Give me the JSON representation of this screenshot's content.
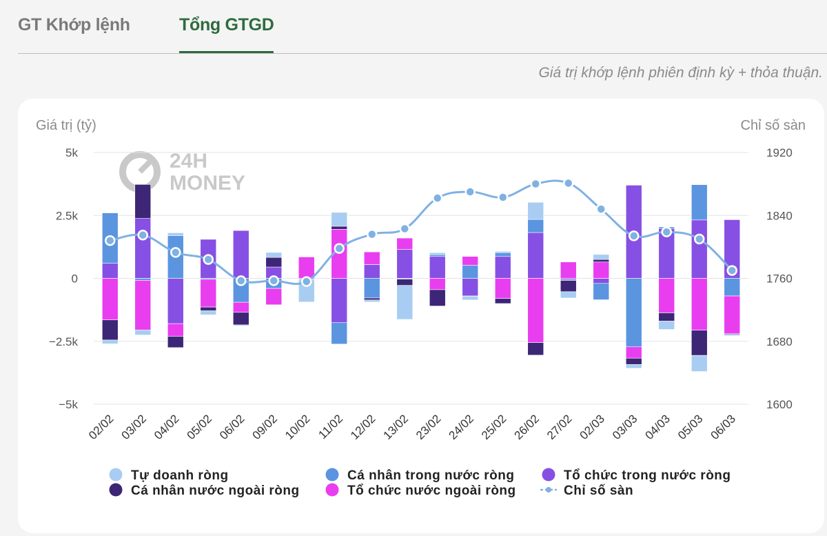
{
  "tabs": [
    {
      "label": "GT Khớp lệnh",
      "active": false
    },
    {
      "label": "Tổng GTGD",
      "active": true
    }
  ],
  "note": "Giá trị khớp lệnh phiên định kỳ + thỏa thuận.",
  "watermark": {
    "line1": "24H",
    "line2": "MONEY"
  },
  "colors": {
    "tu_doanh": "#a9cdf2",
    "ca_nhan_trong_nuoc": "#5b95e0",
    "to_chuc_trong_nuoc": "#8750e4",
    "ca_nhan_nuoc_ngoai": "#3d2675",
    "to_chuc_nuoc_ngoai": "#e93ef0",
    "chi_so_san": "#7fb1e3",
    "accent": "#2e6b3e"
  },
  "chart_data": {
    "type": "bar",
    "stacked": true,
    "title": "",
    "ylabel_left": "Giá trị (tỷ)",
    "ylabel_right": "Chỉ số sàn",
    "ylim": [
      -5000,
      5000
    ],
    "y2lim": [
      1600,
      1920
    ],
    "yticks_left": [
      "5k",
      "2.5k",
      "0",
      "−2.5k",
      "−5k"
    ],
    "yticks_right": [
      "1920",
      "1840",
      "1760",
      "1680",
      "1600"
    ],
    "categories": [
      "02/02",
      "03/02",
      "04/02",
      "05/02",
      "06/02",
      "09/02",
      "10/02",
      "11/02",
      "12/02",
      "13/02",
      "23/02",
      "24/02",
      "25/02",
      "26/02",
      "27/02",
      "02/03",
      "03/03",
      "04/03",
      "05/03",
      "06/03"
    ],
    "series": [
      {
        "key": "to_chuc_trong_nuoc",
        "name": "Tổ chức trong nước ròng",
        "values": [
          600,
          2380,
          -1800,
          1550,
          1900,
          450,
          0,
          -1760,
          550,
          1150,
          870,
          -700,
          870,
          1820,
          -50,
          -200,
          3700,
          1980,
          2320,
          2330
        ]
      },
      {
        "key": "ca_nhan_trong_nuoc",
        "name": "Cá nhân trong nước ròng",
        "values": [
          2000,
          -80,
          1700,
          -40,
          -950,
          -400,
          -40,
          -850,
          -780,
          -30,
          70,
          520,
          150,
          520,
          -30,
          -650,
          -2720,
          60,
          1400,
          -700
        ]
      },
      {
        "key": "to_chuc_nuoc_ngoai",
        "name": "Tổ chức nước ngoài ròng",
        "values": [
          -1650,
          -1970,
          -500,
          -1100,
          -400,
          -650,
          850,
          1950,
          500,
          450,
          -450,
          350,
          -800,
          -2550,
          650,
          650,
          -450,
          -1370,
          -2060,
          -1500
        ]
      },
      {
        "key": "ca_nhan_nuoc_ngoai",
        "name": "Cá nhân nước ngoài ròng",
        "values": [
          -800,
          1350,
          -450,
          -150,
          -500,
          380,
          -20,
          120,
          -80,
          -250,
          -650,
          -10,
          -200,
          -500,
          -450,
          100,
          -250,
          -330,
          -1000,
          -30
        ]
      },
      {
        "key": "tu_doanh",
        "name": "Tự doanh ròng",
        "values": [
          -150,
          -200,
          110,
          -160,
          -40,
          200,
          -880,
          550,
          -80,
          -1350,
          80,
          -150,
          50,
          680,
          -250,
          200,
          -150,
          -330,
          -640,
          -50
        ]
      }
    ],
    "line": {
      "key": "chi_so_san",
      "name": "Chỉ số sàn",
      "axis": "right",
      "values": [
        1808,
        1815,
        1793,
        1784,
        1757,
        1757,
        1756,
        1798,
        1816,
        1823,
        1862,
        1870,
        1863,
        1880,
        1881,
        1848,
        1814,
        1819,
        1810,
        1770
      ]
    },
    "legend": [
      {
        "key": "tu_doanh",
        "name": "Tự doanh ròng",
        "shape": "dot"
      },
      {
        "key": "ca_nhan_trong_nuoc",
        "name": "Cá nhân trong nước ròng",
        "shape": "dot"
      },
      {
        "key": "to_chuc_trong_nuoc",
        "name": "Tổ chức trong nước ròng",
        "shape": "dot"
      },
      {
        "key": "ca_nhan_nuoc_ngoai",
        "name": "Cá nhân nước ngoài ròng",
        "shape": "dot"
      },
      {
        "key": "to_chuc_nuoc_ngoai",
        "name": "Tổ chức nước ngoài ròng",
        "shape": "dot"
      },
      {
        "key": "chi_so_san",
        "name": "Chỉ số sàn",
        "shape": "line-dot"
      }
    ],
    "legend_position": "bottom"
  }
}
